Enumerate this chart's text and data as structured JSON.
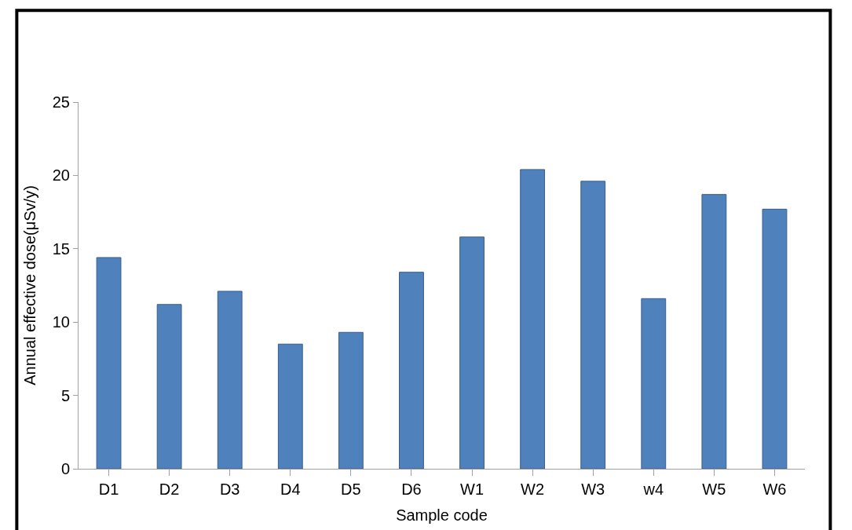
{
  "chart_data": {
    "type": "bar",
    "xlabel": "Sample code",
    "ylabel": "Annual effective dose(μSv/y)",
    "categories": [
      "D1",
      "D2",
      "D3",
      "D4",
      "D5",
      "D6",
      "W1",
      "W2",
      "W3",
      "w4",
      "W5",
      "W6"
    ],
    "values": [
      14.4,
      11.2,
      12.1,
      8.5,
      9.3,
      13.4,
      15.8,
      20.4,
      19.6,
      11.6,
      18.7,
      17.7
    ],
    "color": "#4f81bd",
    "ylim": [
      0,
      25
    ],
    "yticks": [
      0,
      5,
      10,
      15,
      20,
      25
    ]
  }
}
